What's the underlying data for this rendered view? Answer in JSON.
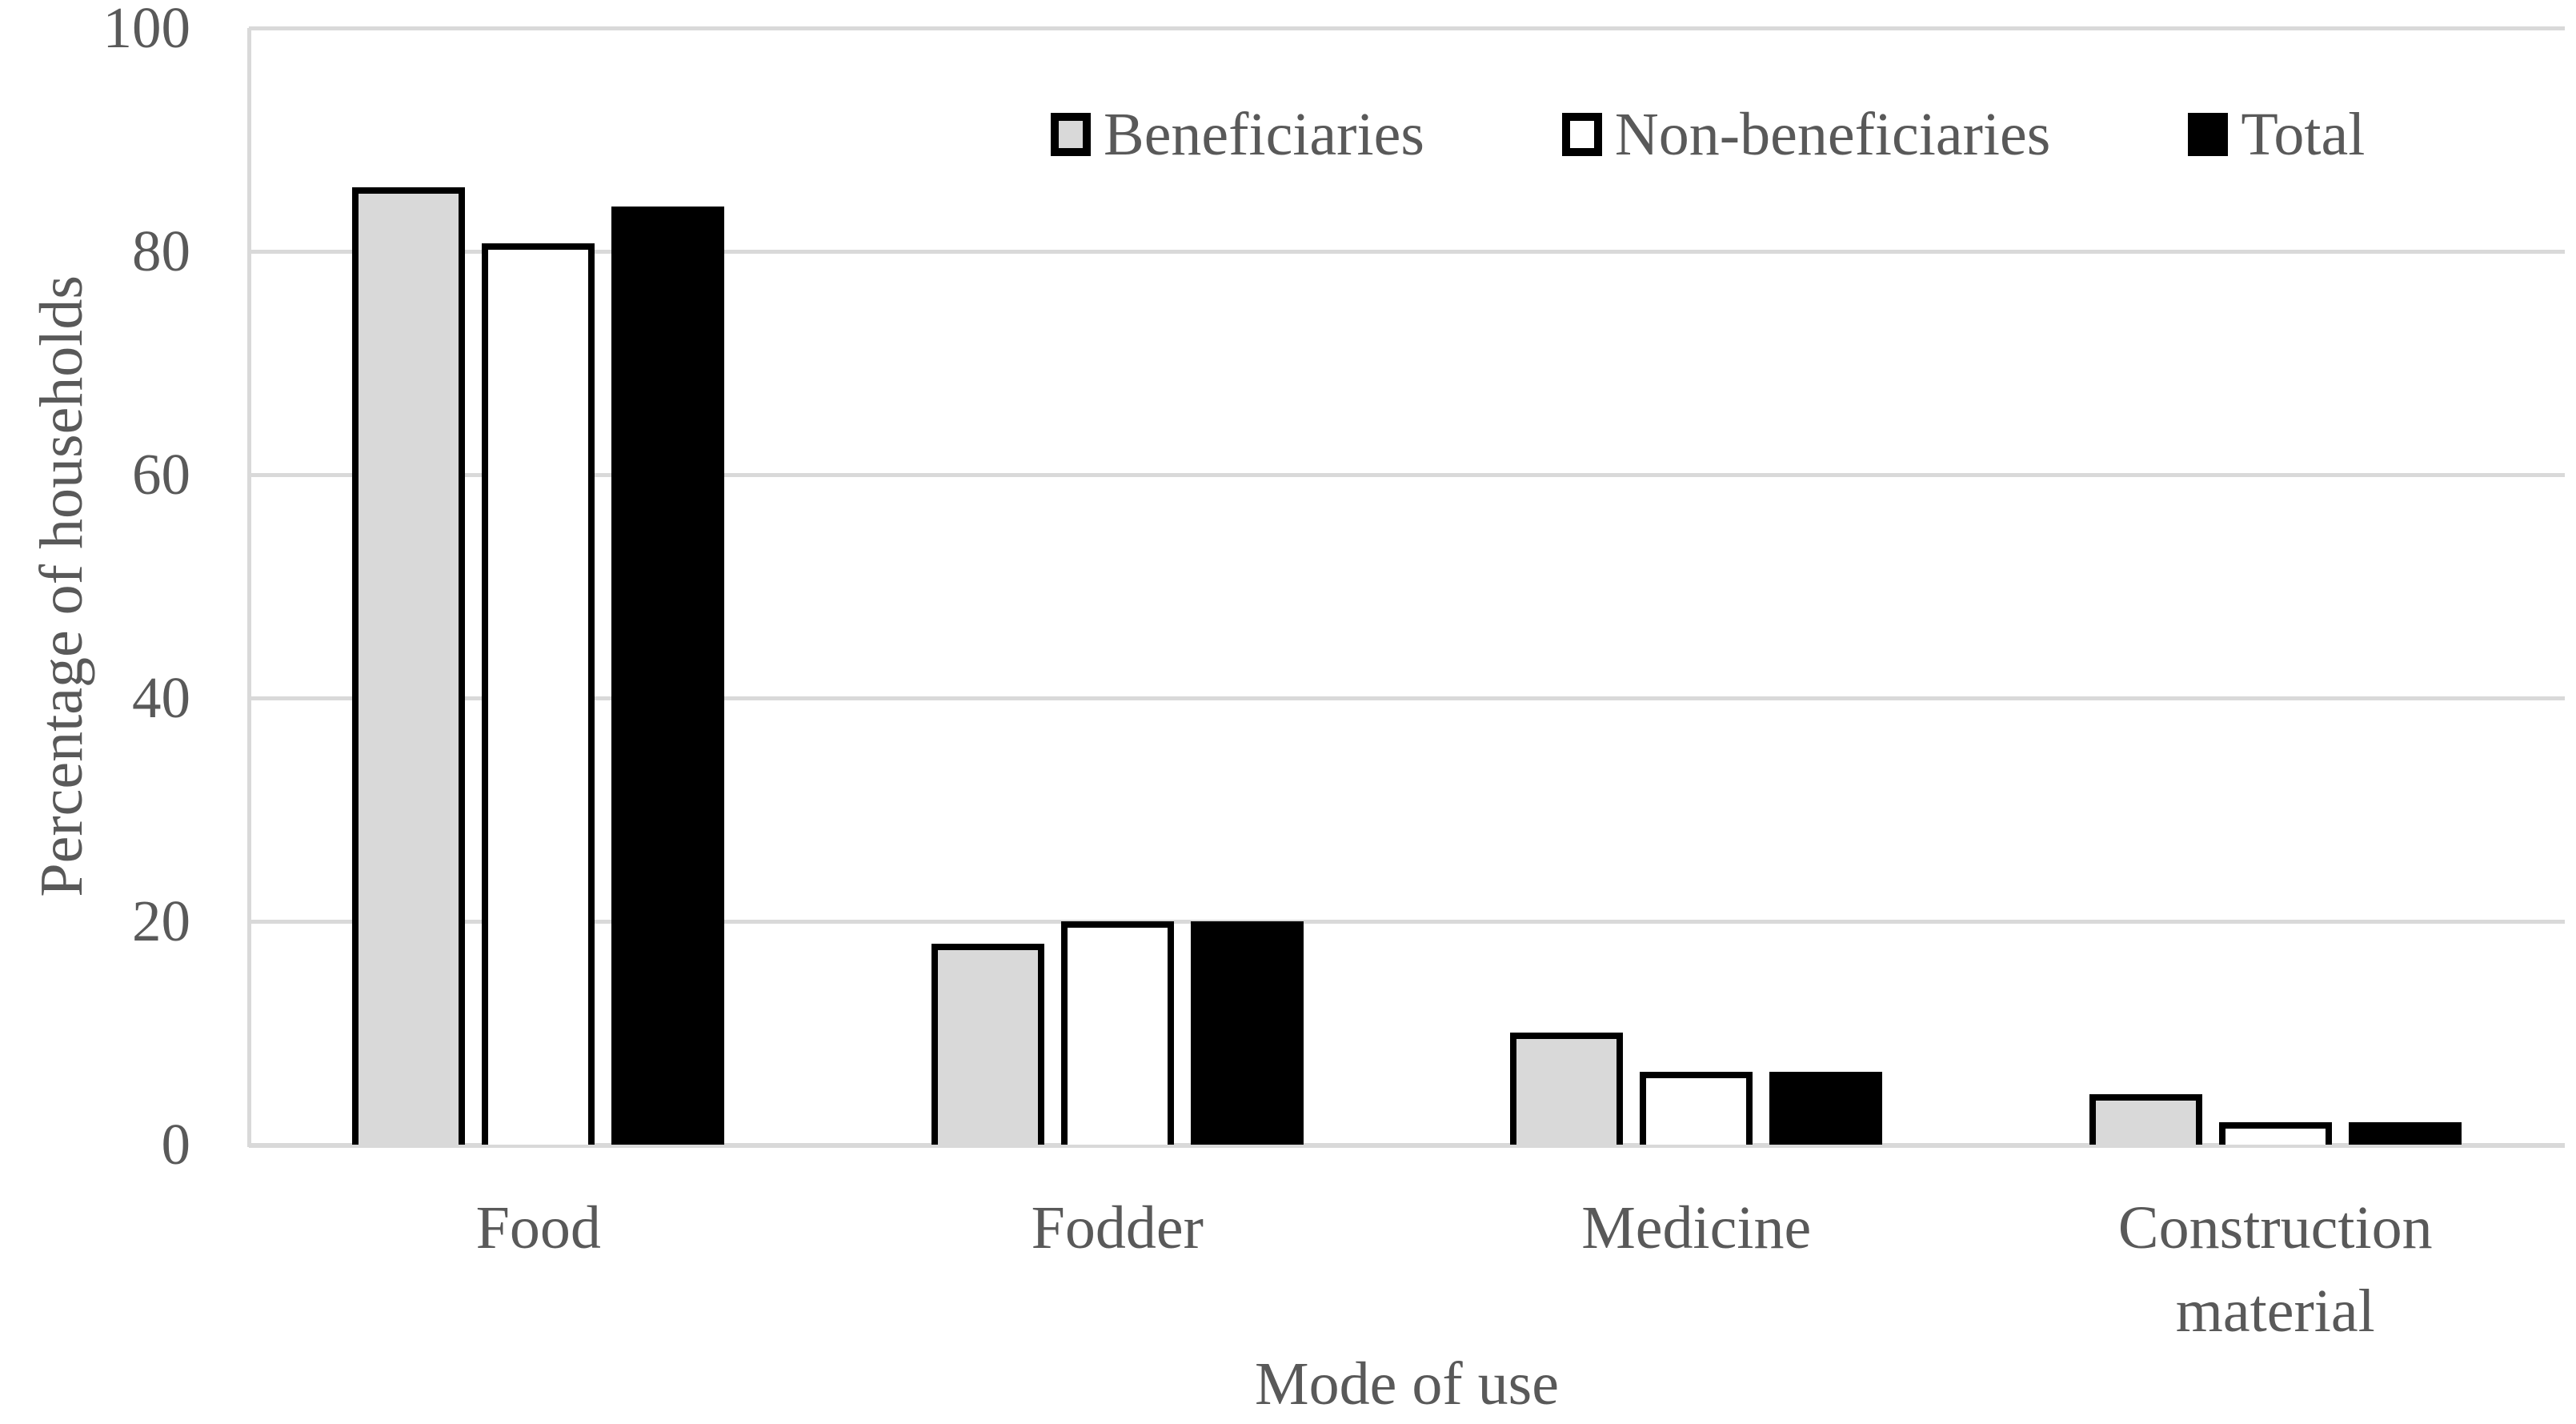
{
  "chart_data": {
    "type": "bar",
    "title": "",
    "xlabel": "Mode of use",
    "ylabel": "Percentage of households",
    "categories": [
      "Food",
      "Fodder",
      "Medicine",
      "Construction material"
    ],
    "series": [
      {
        "name": "Beneficiaries",
        "fill": "#D9D9D9",
        "values": [
          85.7,
          18,
          10,
          4.5
        ]
      },
      {
        "name": "Non-beneficiaries",
        "fill": "#FFFFFF",
        "values": [
          80.7,
          20,
          6.5,
          2
        ]
      },
      {
        "name": "Total",
        "fill": "#000000",
        "values": [
          84,
          20,
          6.5,
          2
        ]
      }
    ],
    "y_ticks": [
      0,
      20,
      40,
      60,
      80,
      100
    ],
    "ylim": [
      0,
      100
    ],
    "grid": true,
    "legend_position": "top",
    "bar_border_color": "#000000"
  },
  "style": {
    "background": "#FFFFFF",
    "text_color": "#595959",
    "grid_color": "#D9D9D9",
    "axis_color": "#D9D9D9"
  }
}
